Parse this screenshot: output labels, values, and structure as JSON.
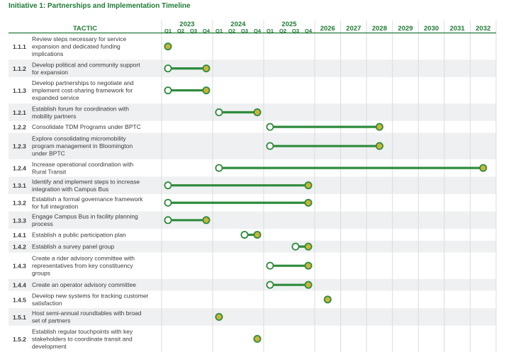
{
  "title": "Initiative 1: Partnerships and Implementation Timeline",
  "colors": {
    "accent": "#1f7a34",
    "bar": "#2e8b3c",
    "start_fill": "#ffffff",
    "end_fill": "#c9b53a",
    "stripe": "#eef0f1",
    "grid": "#dcdcdc"
  },
  "chart_data": {
    "type": "timeline",
    "title": "Initiative 1: Partnerships and Implementation Timeline",
    "column_header": "TACTIC",
    "years": [
      {
        "label": "2023",
        "quarters": [
          "Q1",
          "Q2",
          "Q3",
          "Q4"
        ]
      },
      {
        "label": "2024",
        "quarters": [
          "Q1",
          "Q2",
          "Q3",
          "Q4"
        ]
      },
      {
        "label": "2025",
        "quarters": [
          "Q1",
          "Q2",
          "Q3",
          "Q4"
        ]
      }
    ],
    "later_years": [
      "2026",
      "2027",
      "2028",
      "2029",
      "2030",
      "2031",
      "2032"
    ],
    "rows": [
      {
        "id": "1.1.1",
        "lines": [
          "Review steps necessary for service",
          "expansion and dedicated funding",
          "implications"
        ],
        "start": null,
        "end": "2023 Q1"
      },
      {
        "id": "1.1.2",
        "lines": [
          "Develop political and community support",
          "for expansion"
        ],
        "start": "2023 Q1",
        "end": "2023 Q4"
      },
      {
        "id": "1.1.3",
        "lines": [
          "Develop partnerships to negotiate and",
          "implement cost-sharing framework for",
          "expanded service"
        ],
        "start": "2023 Q1",
        "end": "2023 Q4"
      },
      {
        "id": "1.2.1",
        "lines": [
          "Establish forum for coordination with",
          "mobility partners"
        ],
        "start": "2024 Q1",
        "end": "2024 Q4"
      },
      {
        "id": "1.2.2",
        "lines": [
          "Consolidate TDM Programs under BPTC"
        ],
        "start": "2025 Q1",
        "end": "2028"
      },
      {
        "id": "1.2.3",
        "lines": [
          "Explore consolidating micromobility",
          "program management in Bloomington",
          "under BPTC"
        ],
        "start": "2025 Q1",
        "end": "2028"
      },
      {
        "id": "1.2.4",
        "lines": [
          "Increase operational coordination with",
          "Rural Transit"
        ],
        "start": "2024 Q1",
        "end": "2032"
      },
      {
        "id": "1.3.1",
        "lines": [
          "Identify and implement steps to increase",
          "integration with Campus Bus"
        ],
        "start": "2023 Q1",
        "end": "2025 Q4"
      },
      {
        "id": "1.3.2",
        "lines": [
          "Establish a formal governance framework",
          "for full integration"
        ],
        "start": "2023 Q1",
        "end": "2025 Q4"
      },
      {
        "id": "1.3.3",
        "lines": [
          "Engage Campus Bus in facility planning",
          "process"
        ],
        "start": "2023 Q1",
        "end": "2023 Q4"
      },
      {
        "id": "1.4.1",
        "lines": [
          "Establish a public participation plan"
        ],
        "start": "2024 Q3",
        "end": "2024 Q4"
      },
      {
        "id": "1.4.2",
        "lines": [
          "Establish a survey panel group"
        ],
        "start": "2025 Q3",
        "end": "2025 Q4"
      },
      {
        "id": "1.4.3",
        "lines": [
          "Create a rider advisory committee with",
          "representatives from key constituency",
          "groups"
        ],
        "start": "2025 Q1",
        "end": "2025 Q4"
      },
      {
        "id": "1.4.4",
        "lines": [
          "Create an operator advisory committee"
        ],
        "start": "2025 Q1",
        "end": "2025 Q4"
      },
      {
        "id": "1.4.5",
        "lines": [
          "Develop new systems for tracking customer",
          "satisfaction"
        ],
        "start": null,
        "end": "2026"
      },
      {
        "id": "1.5.1",
        "lines": [
          "Host semi-annual roundtables with broad",
          "set of partners"
        ],
        "start": null,
        "end": "2024 Q1"
      },
      {
        "id": "1.5.2",
        "lines": [
          "Establish regular touchpoints with key",
          "stakeholders to coordinate transit and",
          "development"
        ],
        "start": null,
        "end": "2024 Q4"
      }
    ]
  }
}
